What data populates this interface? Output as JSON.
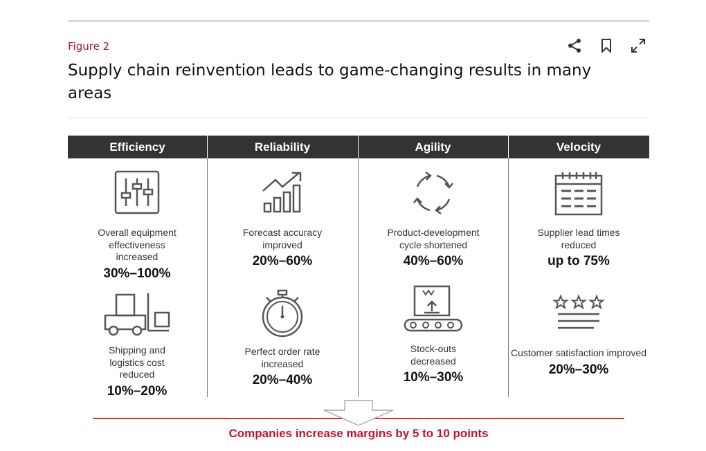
{
  "figure_label": "Figure 2",
  "title": "Supply chain reinvention leads to game-changing results in many areas",
  "actions": {
    "share_icon": "share-icon",
    "bookmark_icon": "bookmark-icon",
    "expand_icon": "expand-icon"
  },
  "columns": [
    {
      "header": "Efficiency",
      "items": [
        {
          "icon": "sliders-icon",
          "label": "Overall equipment effectiveness increased",
          "value": "30%–100%"
        },
        {
          "icon": "forklift-icon",
          "label": "Shipping and logistics cost reduced",
          "value": "10%–20%"
        }
      ]
    },
    {
      "header": "Reliability",
      "items": [
        {
          "icon": "growth-chart-icon",
          "label": "Forecast accuracy improved",
          "value": "20%–60%"
        },
        {
          "icon": "stopwatch-icon",
          "label": "Perfect order rate increased",
          "value": "20%–40%"
        }
      ]
    },
    {
      "header": "Agility",
      "items": [
        {
          "icon": "cycle-arrows-icon",
          "label": "Product-development cycle shortened",
          "value": "40%–60%"
        },
        {
          "icon": "conveyor-box-icon",
          "label": "Stock-outs decreased",
          "value": "10%–30%"
        }
      ]
    },
    {
      "header": "Velocity",
      "items": [
        {
          "icon": "calendar-icon",
          "label": "Supplier lead times reduced",
          "value": "up to 75%"
        },
        {
          "icon": "rating-stars-icon",
          "label": "Customer satisfaction improved",
          "value": "20%–30%"
        }
      ]
    }
  ],
  "conclusion": "Companies increase margins by 5 to 10 points",
  "colors": {
    "header_bg": "#333333",
    "accent_red": "#c8102e",
    "label_red": "#a6192e"
  }
}
